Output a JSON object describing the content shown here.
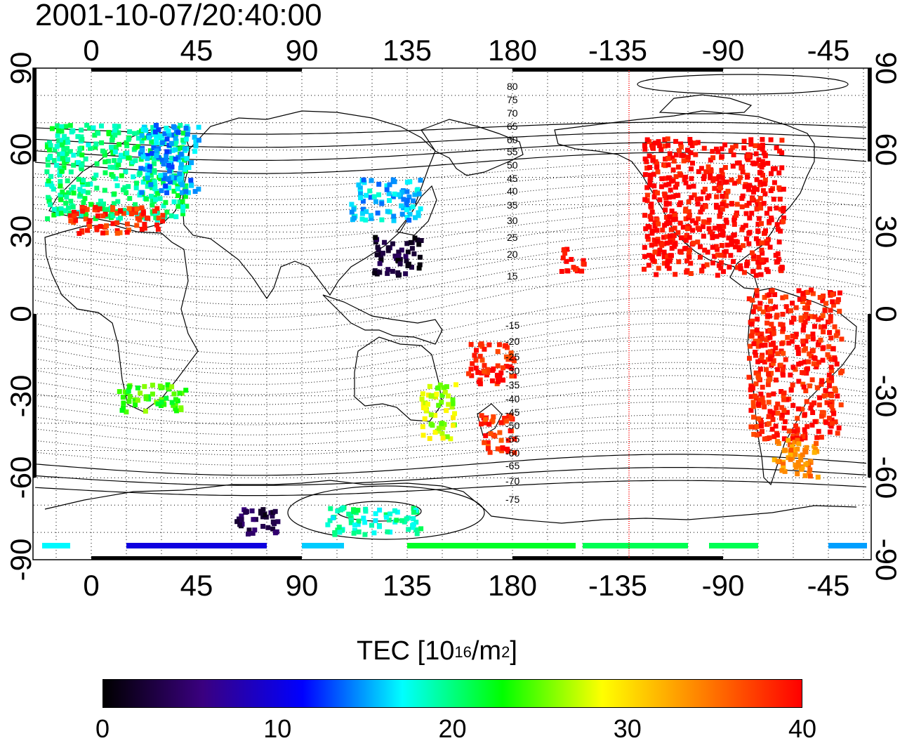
{
  "title": "2001-10-07/20:40:00",
  "colorbar": {
    "title": "TEC  [10",
    "unit_exp1": "16",
    "unit_mid": "/m",
    "unit_exp2": "2",
    "unit_end": "]",
    "ticks": [
      "0",
      "10",
      "20",
      "30",
      "40"
    ],
    "range": [
      0,
      40
    ],
    "colormap": [
      "#000000",
      "#3a0080",
      "#0000ff",
      "#00ffff",
      "#00ff00",
      "#ffff00",
      "#ff8000",
      "#ff0000"
    ]
  },
  "map": {
    "projection": "equirectangular",
    "lon_ticks": [
      "0",
      "45",
      "90",
      "135",
      "180",
      "-135",
      "-90",
      "-45"
    ],
    "lat_ticks": [
      "90",
      "60",
      "30",
      "0",
      "-30",
      "-60",
      "-90"
    ],
    "contour_labels_north": [
      "80",
      "75",
      "70",
      "65",
      "60",
      "55",
      "50",
      "45",
      "40",
      "35",
      "30",
      "25",
      "20",
      "15"
    ],
    "contour_labels_south": [
      "-15",
      "-20",
      "-25",
      "-30",
      "-35",
      "-40",
      "-45",
      "-50",
      "-55",
      "-60",
      "-65",
      "-70",
      "-75"
    ],
    "terminator_longitude": -130,
    "terminator_color": "#ff0000",
    "grid": true
  },
  "chart_data": {
    "type": "heatmap",
    "title": "2001-10-07/20:40:00",
    "xlabel": "",
    "ylabel": "",
    "xlim": [
      -25,
      335
    ],
    "ylim": [
      -90,
      90
    ],
    "colorbar_label": "TEC  [10^16/m^2]",
    "clim": [
      0,
      40
    ],
    "regions": [
      {
        "lon_range": [
          -20,
          40
        ],
        "lat_range": [
          35,
          70
        ],
        "tec": 20
      },
      {
        "lon_range": [
          20,
          45
        ],
        "lat_range": [
          45,
          70
        ],
        "tec": 15
      },
      {
        "lon_range": [
          -10,
          30
        ],
        "lat_range": [
          30,
          40
        ],
        "tec": 38
      },
      {
        "lon_range": [
          110,
          140
        ],
        "lat_range": [
          35,
          50
        ],
        "tec": 16
      },
      {
        "lon_range": [
          120,
          140
        ],
        "lat_range": [
          15,
          30
        ],
        "tec": 2
      },
      {
        "lon_range": [
          235,
          295
        ],
        "lat_range": [
          15,
          65
        ],
        "tec": 40
      },
      {
        "lon_range": [
          280,
          320
        ],
        "lat_range": [
          -45,
          10
        ],
        "tec": 39
      },
      {
        "lon_range": [
          290,
          310
        ],
        "lat_range": [
          -60,
          -45
        ],
        "tec": 34
      },
      {
        "lon_range": [
          165,
          180
        ],
        "lat_range": [
          -50,
          -35
        ],
        "tec": 38
      },
      {
        "lon_range": [
          140,
          155
        ],
        "lat_range": [
          -45,
          -25
        ],
        "tec": 27
      },
      {
        "lon_range": [
          60,
          80
        ],
        "lat_range": [
          -80,
          -70
        ],
        "tec": 3
      },
      {
        "lon_range": [
          100,
          140
        ],
        "lat_range": [
          -80,
          -70
        ],
        "tec": 19
      },
      {
        "lon_range": [
          10,
          40
        ],
        "lat_range": [
          -35,
          -25
        ],
        "tec": 24
      },
      {
        "lon_range": [
          200,
          210
        ],
        "lat_range": [
          15,
          25
        ],
        "tec": 40
      },
      {
        "lon_range": [
          160,
          180
        ],
        "lat_range": [
          -25,
          -10
        ],
        "tec": 39
      }
    ]
  }
}
